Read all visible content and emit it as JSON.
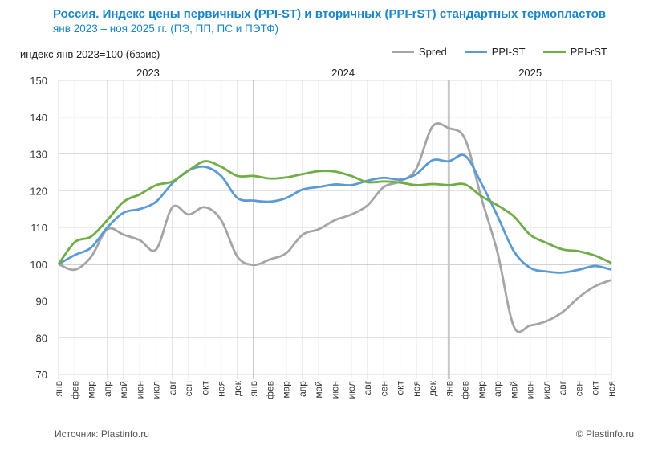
{
  "chart_data": {
    "type": "line",
    "title": "Россия. Индекс цены первичных (PPI-ST) и вторичных (PPI-rST) стандартных термопластов",
    "subtitle": "янв 2023 – ноя 2025 гг. (ПЭ, ПП, ПС и ПЭТФ)",
    "ylabel": "индекс янв 2023=100 (базис)",
    "ylim": [
      70,
      150
    ],
    "yticks": [
      70,
      80,
      90,
      100,
      110,
      120,
      130,
      140,
      150
    ],
    "grid": true,
    "legend_position": "top-right",
    "years": [
      "2023",
      "2024",
      "2025"
    ],
    "categories": [
      "янв",
      "фев",
      "мар",
      "апр",
      "май",
      "июн",
      "июл",
      "авг",
      "сен",
      "окт",
      "ноя",
      "дек",
      "янв",
      "фев",
      "мар",
      "апр",
      "май",
      "июн",
      "июл",
      "авг",
      "сен",
      "окт",
      "ноя",
      "дек",
      "янв",
      "фев",
      "мар",
      "апр",
      "май",
      "июн",
      "июл",
      "авг",
      "сен",
      "окт",
      "ноя"
    ],
    "series": [
      {
        "name": "Spred",
        "color": "#a5a5a5",
        "values": [
          100,
          98.5,
          102,
          109.5,
          108,
          106.5,
          104,
          115.5,
          113.5,
          115.5,
          112,
          102,
          99.8,
          101.3,
          103,
          108,
          109.5,
          112,
          113.5,
          116,
          121,
          122.5,
          126,
          137.5,
          137,
          134,
          118,
          103,
          83,
          83.3,
          84.5,
          87,
          91,
          94,
          95.7
        ]
      },
      {
        "name": "PPI-ST",
        "color": "#5b9bd5",
        "values": [
          100,
          102.5,
          104.5,
          110,
          114,
          115,
          117,
          122,
          125.5,
          126.5,
          124,
          118,
          117.3,
          117,
          118,
          120.3,
          121,
          121.7,
          121.5,
          122.7,
          123.5,
          123,
          124.5,
          128.3,
          128,
          129.5,
          122,
          113,
          103.5,
          99,
          98,
          97.7,
          98.5,
          99.5,
          98.5
        ]
      },
      {
        "name": "PPI-rST",
        "color": "#70ad47",
        "values": [
          100,
          106,
          107.5,
          112,
          117,
          119,
          121.5,
          122.5,
          125.5,
          128,
          126.5,
          124,
          124,
          123.3,
          123.6,
          124.5,
          125.3,
          125.2,
          124,
          122.3,
          122.5,
          122.2,
          121.5,
          121.8,
          121.5,
          121.7,
          118.5,
          116,
          113,
          108,
          105.8,
          104,
          103.5,
          102.3,
          100.3
        ]
      }
    ]
  },
  "footer": {
    "source": "Источник: Plastinfo.ru",
    "copyright": "© Plastinfo.ru"
  }
}
